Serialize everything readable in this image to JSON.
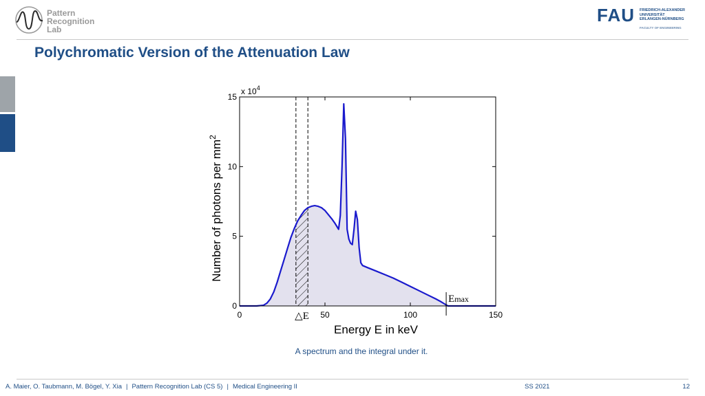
{
  "header": {
    "lab_logo": {
      "lines": [
        "Pattern",
        "Recognition",
        "Lab"
      ]
    },
    "fau_logo": {
      "letters": "FAU",
      "lines": [
        "FRIEDRICH-ALEXANDER",
        "UNIVERSITÄT",
        "ERLANGEN-NÜRNBERG"
      ],
      "faculty": "FACULTY OF ENGINEERING"
    }
  },
  "slide": {
    "title": "Polychromatic Version of the Attenuation Law",
    "caption": "A spectrum and the integral under it."
  },
  "chart_data": {
    "type": "area",
    "xlabel": "Energy E in keV",
    "ylabel": "Number of photons per mm",
    "ylabel_superscript": "2",
    "y_multiplier_label": "x 10",
    "y_multiplier_exponent": "4",
    "xlim": [
      0,
      150
    ],
    "ylim": [
      0,
      150000
    ],
    "x_ticks": [
      0,
      50,
      100,
      150
    ],
    "y_ticks": [
      0,
      50000,
      100000,
      150000
    ],
    "y_tick_labels": [
      "0",
      "5",
      "10",
      "15"
    ],
    "grid": false,
    "fill_color": "#e3e1ee",
    "line_color": "#1a1acd",
    "series": [
      {
        "x": [
          0,
          10,
          14,
          16,
          18,
          20,
          22,
          24,
          26,
          28,
          30,
          32,
          34,
          36,
          38,
          40,
          42,
          44,
          46,
          48,
          50,
          52,
          54,
          56,
          57,
          58,
          59,
          60,
          61,
          62,
          63,
          64,
          65,
          66,
          67,
          68,
          69,
          70,
          71,
          72,
          75,
          80,
          85,
          90,
          95,
          100,
          105,
          110,
          115,
          118,
          120,
          122,
          150
        ],
        "y": [
          0,
          0,
          500,
          2000,
          5000,
          10000,
          17000,
          25000,
          33000,
          41000,
          49000,
          55500,
          61000,
          65000,
          68500,
          70500,
          71500,
          72000,
          71500,
          70500,
          68500,
          65500,
          62500,
          59000,
          57000,
          55000,
          65000,
          100000,
          145000,
          120000,
          55000,
          48000,
          45000,
          44000,
          55000,
          68000,
          62000,
          42000,
          31000,
          29000,
          27500,
          25000,
          22500,
          20000,
          17000,
          14000,
          11000,
          8000,
          5000,
          3000,
          1500,
          0,
          0
        ]
      }
    ],
    "annotations": {
      "delta_e_band": {
        "x_start": 33,
        "x_end": 40,
        "label": "△E"
      },
      "e_max": {
        "x": 121,
        "label": "E",
        "subscript": "max"
      }
    }
  },
  "footer": {
    "authors": "A. Maier, O. Taubmann, M. Bögel, Y. Xia",
    "lab": "Pattern Recognition Lab (CS 5)",
    "course": "Medical Engineering II",
    "term": "SS 2021",
    "page": "12",
    "separator": "|"
  }
}
